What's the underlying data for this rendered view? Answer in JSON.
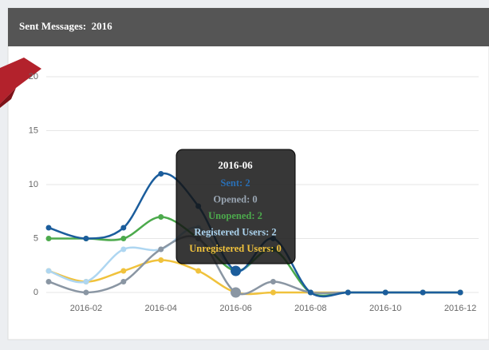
{
  "header": {
    "title": "Sent Messages:  2016"
  },
  "chart_data": {
    "type": "line",
    "x": [
      "2016-01",
      "2016-02",
      "2016-03",
      "2016-04",
      "2016-05",
      "2016-06",
      "2016-07",
      "2016-08",
      "2016-09",
      "2016-10",
      "2016-11",
      "2016-12"
    ],
    "xticks": [
      "2016-02",
      "2016-04",
      "2016-06",
      "2016-08",
      "2016-10",
      "2016-12"
    ],
    "ylim": [
      0,
      20
    ],
    "yticks": [
      0,
      5,
      10,
      15,
      20
    ],
    "grid": true,
    "series": [
      {
        "name": "Unregistered Users",
        "color": "#f0c23c",
        "values": [
          2,
          1,
          2,
          3,
          2,
          0,
          0,
          0,
          0,
          0,
          0,
          0
        ]
      },
      {
        "name": "Registered Users",
        "color": "#aed6f1",
        "values": [
          2,
          1,
          4,
          4,
          6,
          2,
          4,
          0,
          0,
          0,
          0,
          0
        ]
      },
      {
        "name": "Unopened",
        "color": "#4caa4c",
        "values": [
          5,
          5,
          5,
          7,
          5,
          2,
          4,
          0,
          0,
          0,
          0,
          0
        ]
      },
      {
        "name": "Opened",
        "color": "#8a96a3",
        "values": [
          1,
          0,
          1,
          4,
          5,
          0,
          1,
          0,
          0,
          0,
          0,
          0
        ]
      },
      {
        "name": "Sent",
        "color": "#1b5d9c",
        "values": [
          6,
          5,
          6,
          11,
          8,
          2,
          5,
          0,
          0,
          0,
          0,
          0
        ]
      }
    ],
    "highlight_index": 5,
    "tooltip": {
      "title": "2016-06",
      "lines": [
        {
          "text": "Sent: 2",
          "color": "#2a6fb4"
        },
        {
          "text": "Opened: 0",
          "color": "#9aa6b3"
        },
        {
          "text": "Unopened: 2",
          "color": "#4caa4c"
        },
        {
          "text": "Registered Users: 2",
          "color": "#aed6f1"
        },
        {
          "text": "Unregistered Users: 0",
          "color": "#f0c23c"
        }
      ]
    }
  }
}
